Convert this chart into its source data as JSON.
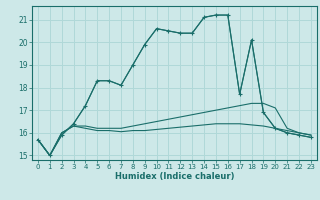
{
  "xlabel": "Humidex (Indice chaleur)",
  "xlim": [
    -0.5,
    23.5
  ],
  "ylim": [
    14.8,
    21.6
  ],
  "yticks": [
    15,
    16,
    17,
    18,
    19,
    20,
    21
  ],
  "xticks": [
    0,
    1,
    2,
    3,
    4,
    5,
    6,
    7,
    8,
    9,
    10,
    11,
    12,
    13,
    14,
    15,
    16,
    17,
    18,
    19,
    20,
    21,
    22,
    23
  ],
  "background_color": "#cde8e8",
  "grid_color": "#b0d8d8",
  "line_color": "#1a6e6a",
  "series_marked": {
    "x": [
      0,
      1,
      2,
      3,
      4,
      5,
      6,
      7,
      8,
      9,
      10,
      11,
      12,
      13,
      14,
      15,
      16,
      17,
      18,
      19,
      20,
      21,
      22,
      23
    ],
    "y": [
      15.7,
      15.0,
      15.9,
      16.4,
      17.2,
      18.3,
      18.3,
      18.1,
      19.0,
      19.9,
      20.6,
      20.5,
      20.4,
      20.4,
      21.1,
      21.2,
      21.2,
      17.7,
      20.1,
      16.9,
      16.2,
      16.0,
      15.9,
      15.8
    ]
  },
  "series_smooth": {
    "x": [
      0,
      1,
      2,
      3,
      4,
      5,
      6,
      7,
      8,
      9,
      10,
      11,
      12,
      13,
      14,
      15,
      16,
      17,
      18,
      19,
      20,
      21,
      22,
      23
    ],
    "y": [
      15.7,
      15.0,
      15.9,
      16.4,
      17.2,
      18.3,
      18.3,
      18.1,
      19.0,
      19.9,
      20.6,
      20.5,
      20.4,
      20.4,
      21.1,
      21.2,
      21.2,
      17.7,
      20.1,
      16.9,
      16.2,
      16.0,
      15.9,
      15.8
    ]
  },
  "series_mid": {
    "x": [
      0,
      1,
      2,
      3,
      4,
      5,
      6,
      7,
      8,
      9,
      10,
      11,
      12,
      13,
      14,
      15,
      16,
      17,
      18,
      19,
      20,
      21,
      22,
      23
    ],
    "y": [
      15.7,
      15.0,
      16.0,
      16.3,
      16.3,
      16.2,
      16.2,
      16.2,
      16.3,
      16.4,
      16.5,
      16.6,
      16.7,
      16.8,
      16.9,
      17.0,
      17.1,
      17.2,
      17.3,
      17.3,
      17.1,
      16.2,
      16.0,
      15.9
    ]
  },
  "series_flat": {
    "x": [
      0,
      1,
      2,
      3,
      4,
      5,
      6,
      7,
      8,
      9,
      10,
      11,
      12,
      13,
      14,
      15,
      16,
      17,
      18,
      19,
      20,
      21,
      22,
      23
    ],
    "y": [
      15.7,
      15.0,
      16.0,
      16.3,
      16.2,
      16.1,
      16.1,
      16.05,
      16.1,
      16.1,
      16.15,
      16.2,
      16.25,
      16.3,
      16.35,
      16.4,
      16.4,
      16.4,
      16.35,
      16.3,
      16.2,
      16.1,
      16.0,
      15.9
    ]
  }
}
